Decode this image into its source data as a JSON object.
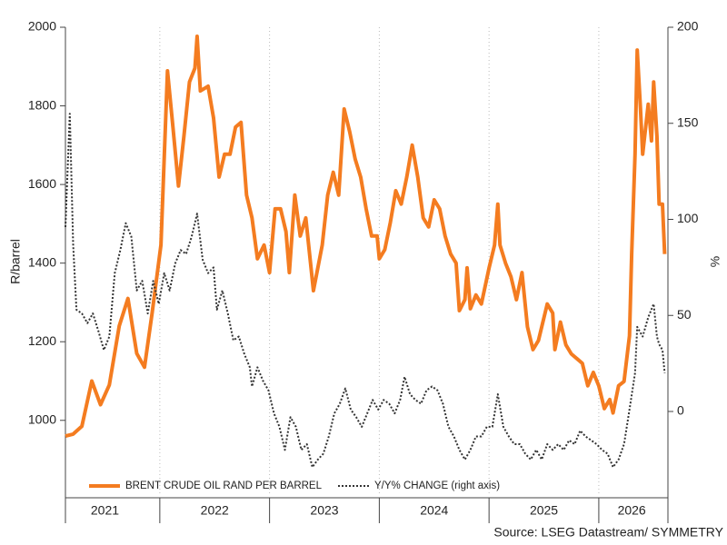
{
  "chart_data": {
    "type": "line",
    "y_label": "R/barrel",
    "y2_label": "%",
    "source": "Source: LSEG Datastream/ SYMMETRY",
    "legend": "lower left",
    "grid": "x",
    "xlim": [
      2021.14,
      2026.63
    ],
    "xticks": [
      {
        "value": 2021.5,
        "label": "2021"
      },
      {
        "value": 2022.5,
        "label": "2022"
      },
      {
        "value": 2023.5,
        "label": "2023"
      },
      {
        "value": 2024.5,
        "label": "2024"
      },
      {
        "value": 2025.5,
        "label": "2025"
      },
      {
        "value": 2026.3,
        "label": "2026"
      }
    ],
    "x_gridlines": [
      2022,
      2023,
      2024,
      2025,
      2026
    ],
    "ylim": [
      810,
      2000
    ],
    "yticks": [
      1000,
      1200,
      1400,
      1600,
      1800,
      2000
    ],
    "y2lim": [
      -43.5,
      200
    ],
    "y2ticks": [
      0,
      50,
      100,
      150,
      200
    ],
    "series": [
      {
        "name": "BRENT CRUDE OIL RAND PER BARREL",
        "color": "#f47c20",
        "style": "solid",
        "x": [
          2021.14,
          2021.21,
          2021.29,
          2021.38,
          2021.46,
          2021.54,
          2021.63,
          2021.71,
          2021.79,
          2021.86,
          2021.93,
          2022.01,
          2022.07,
          2022.12,
          2022.17,
          2022.22,
          2022.27,
          2022.32,
          2022.34,
          2022.37,
          2022.44,
          2022.49,
          2022.54,
          2022.59,
          2022.64,
          2022.69,
          2022.74,
          2022.79,
          2022.84,
          2022.89,
          2022.95,
          2023.0,
          2023.05,
          2023.1,
          2023.15,
          2023.18,
          2023.23,
          2023.28,
          2023.33,
          2023.4,
          2023.48,
          2023.53,
          2023.58,
          2023.63,
          2023.68,
          2023.73,
          2023.78,
          2023.83,
          2023.88,
          2023.93,
          2023.98,
          2024.0,
          2024.05,
          2024.1,
          2024.15,
          2024.2,
          2024.25,
          2024.3,
          2024.35,
          2024.4,
          2024.45,
          2024.5,
          2024.55,
          2024.6,
          2024.65,
          2024.7,
          2024.73,
          2024.78,
          2024.8,
          2024.83,
          2024.88,
          2024.93,
          2025.0,
          2025.05,
          2025.08,
          2025.1,
          2025.15,
          2025.2,
          2025.25,
          2025.3,
          2025.35,
          2025.4,
          2025.45,
          2025.53,
          2025.58,
          2025.6,
          2025.65,
          2025.7,
          2025.75,
          2025.8,
          2025.85,
          2025.9,
          2025.95,
          2026.0,
          2026.05,
          2026.1,
          2026.13,
          2026.18,
          2026.23,
          2026.28,
          2026.3,
          2026.33,
          2026.35,
          2026.38,
          2026.4,
          2026.45,
          2026.48,
          2026.5,
          2026.53,
          2026.55,
          2026.58,
          2026.6
        ],
        "values": [
          960,
          965,
          985,
          1100,
          1040,
          1090,
          1240,
          1310,
          1170,
          1135,
          1273,
          1446,
          1889,
          1746,
          1596,
          1723,
          1861,
          1896,
          1977,
          1838,
          1850,
          1769,
          1619,
          1677,
          1677,
          1746,
          1758,
          1573,
          1515,
          1411,
          1446,
          1376,
          1538,
          1538,
          1480,
          1376,
          1573,
          1469,
          1515,
          1330,
          1446,
          1573,
          1631,
          1573,
          1792,
          1734,
          1665,
          1619,
          1538,
          1469,
          1469,
          1411,
          1434,
          1503,
          1584,
          1550,
          1619,
          1700,
          1619,
          1515,
          1492,
          1561,
          1538,
          1469,
          1423,
          1400,
          1279,
          1307,
          1388,
          1284,
          1319,
          1296,
          1388,
          1446,
          1550,
          1446,
          1400,
          1365,
          1307,
          1376,
          1238,
          1180,
          1203,
          1296,
          1273,
          1180,
          1250,
          1192,
          1169,
          1157,
          1145,
          1088,
          1122,
          1088,
          1030,
          1053,
          1019,
          1088,
          1099,
          1215,
          1423,
          1677,
          1942,
          1792,
          1677,
          1804,
          1711,
          1861,
          1723,
          1550,
          1550,
          1423
        ]
      },
      {
        "name": "Y/Y% CHANGE (right axis)",
        "color": "#333333",
        "style": "dotted",
        "axis": "y2",
        "x": [
          2021.14,
          2021.18,
          2021.21,
          2021.24,
          2021.29,
          2021.34,
          2021.39,
          2021.44,
          2021.49,
          2021.54,
          2021.59,
          2021.64,
          2021.69,
          2021.74,
          2021.79,
          2021.84,
          2021.89,
          2021.94,
          2021.99,
          2022.04,
          2022.09,
          2022.14,
          2022.19,
          2022.24,
          2022.29,
          2022.34,
          2022.39,
          2022.44,
          2022.49,
          2022.52,
          2022.57,
          2022.62,
          2022.67,
          2022.72,
          2022.77,
          2022.82,
          2022.84,
          2022.89,
          2022.94,
          2022.99,
          2023.04,
          2023.09,
          2023.14,
          2023.19,
          2023.24,
          2023.29,
          2023.34,
          2023.39,
          2023.44,
          2023.49,
          2023.54,
          2023.59,
          2023.64,
          2023.69,
          2023.74,
          2023.79,
          2023.84,
          2023.89,
          2023.94,
          2023.99,
          2024.04,
          2024.09,
          2024.14,
          2024.19,
          2024.23,
          2024.28,
          2024.33,
          2024.38,
          2024.43,
          2024.48,
          2024.53,
          2024.58,
          2024.63,
          2024.68,
          2024.73,
          2024.78,
          2024.83,
          2024.88,
          2024.93,
          2024.98,
          2025.03,
          2025.08,
          2025.13,
          2025.18,
          2025.23,
          2025.28,
          2025.33,
          2025.38,
          2025.43,
          2025.48,
          2025.53,
          2025.58,
          2025.63,
          2025.68,
          2025.73,
          2025.78,
          2025.83,
          2025.88,
          2025.93,
          2025.98,
          2026.03,
          2026.08,
          2026.13,
          2026.18,
          2026.23,
          2026.28,
          2026.33,
          2026.35,
          2026.4,
          2026.45,
          2026.5,
          2026.53,
          2026.55,
          2026.58,
          2026.6
        ],
        "values": [
          96,
          155,
          87,
          53,
          51,
          46,
          51,
          42,
          32,
          39,
          72,
          84,
          98,
          91,
          63,
          68,
          51,
          68,
          56,
          72,
          63,
          77,
          84,
          82,
          91,
          103,
          79,
          72,
          75,
          53,
          63,
          51,
          37,
          39,
          30,
          23,
          13,
          23,
          16,
          11,
          -1,
          -8,
          -20,
          -3,
          -8,
          -20,
          -17,
          -29,
          -25,
          -22,
          -13,
          -1,
          4,
          12,
          1,
          -3,
          -8,
          -1,
          6,
          1,
          6,
          4,
          -1,
          6,
          18,
          9,
          6,
          4,
          11,
          13,
          11,
          4,
          -8,
          -13,
          -20,
          -25,
          -20,
          -13,
          -13,
          -8,
          -8,
          9,
          -8,
          -13,
          -17,
          -17,
          -22,
          -25,
          -20,
          -25,
          -17,
          -20,
          -17,
          -20,
          -15,
          -17,
          -10,
          -13,
          -15,
          -17,
          -20,
          -22,
          -29,
          -25,
          -17,
          1,
          20,
          44,
          39,
          49,
          56,
          39,
          35,
          32,
          20
        ]
      }
    ]
  }
}
